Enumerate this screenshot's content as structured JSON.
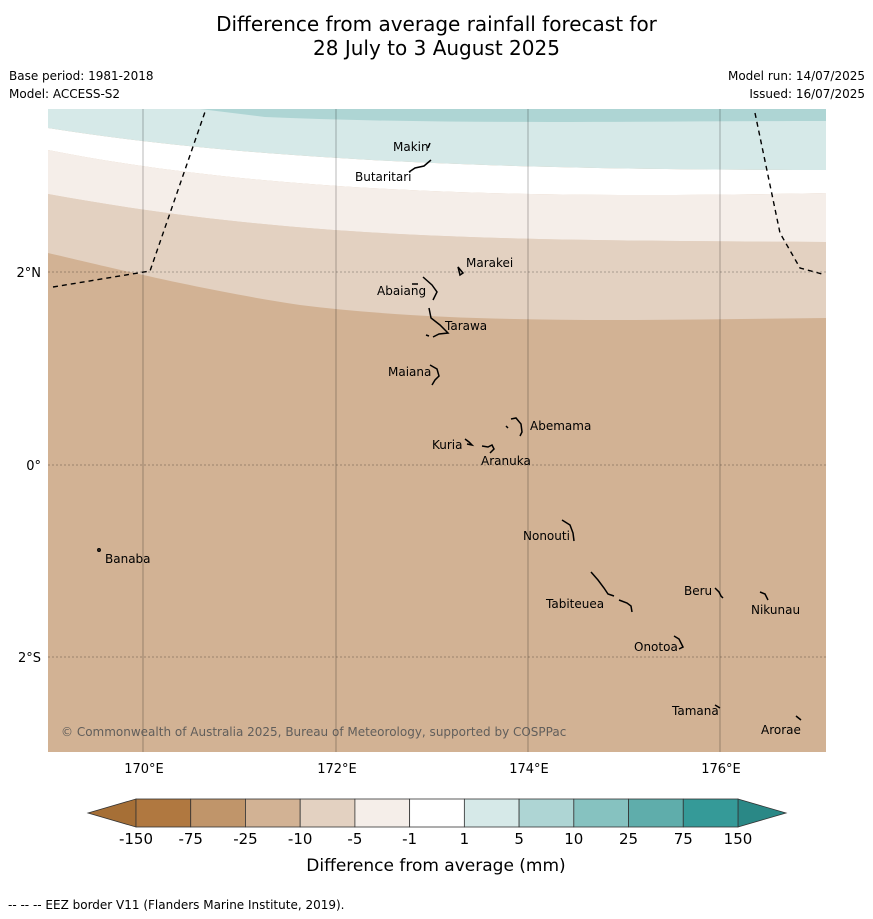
{
  "title": {
    "line1": "Difference from average rainfall forecast for",
    "line2": "28 July to 3 August 2025"
  },
  "meta": {
    "base_period": "Base period: 1981-2018",
    "model": "Model: ACCESS-S2",
    "model_run": "Model run: 14/07/2025",
    "issued": "Issued: 16/07/2025"
  },
  "copyright": "© Commonwealth of Australia 2025, Bureau of Meteorology, supported by COSPPac",
  "axes": {
    "lon_labels": [
      "170°E",
      "172°E",
      "174°E",
      "176°E"
    ],
    "lat_labels": [
      "2°N",
      "0°",
      "2°S"
    ]
  },
  "islands": [
    {
      "name": "Makin"
    },
    {
      "name": "Butaritari"
    },
    {
      "name": "Marakei"
    },
    {
      "name": "Abaiang"
    },
    {
      "name": "Tarawa"
    },
    {
      "name": "Maiana"
    },
    {
      "name": "Abemama"
    },
    {
      "name": "Kuria"
    },
    {
      "name": "Aranuka"
    },
    {
      "name": "Nonouti"
    },
    {
      "name": "Banaba"
    },
    {
      "name": "Beru"
    },
    {
      "name": "Nikunau"
    },
    {
      "name": "Tabiteuea"
    },
    {
      "name": "Onotoa"
    },
    {
      "name": "Tamana"
    },
    {
      "name": "Arorae"
    }
  ],
  "legend": {
    "ticks": [
      "-150",
      "-75",
      "-25",
      "-10",
      "-5",
      "-1",
      "1",
      "5",
      "10",
      "25",
      "75",
      "150"
    ],
    "colors": [
      "#b07840",
      "#c0956a",
      "#d2b294",
      "#e3d1c1",
      "#f5eee9",
      "#ffffff",
      "#d6e9e8",
      "#aed5d4",
      "#86c2c0",
      "#5fadab",
      "#359a98"
    ],
    "label": "Difference from average (mm)"
  },
  "footer": "--  --  -- EEZ border V11 (Flanders Marine Institute, 2019)."
}
